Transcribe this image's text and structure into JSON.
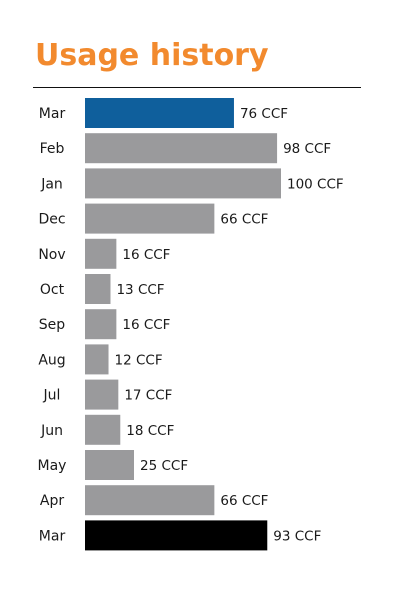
{
  "chart_data": {
    "type": "bar",
    "orientation": "horizontal",
    "title": "Usage history",
    "unit": "CCF",
    "categories": [
      "Mar",
      "Feb",
      "Jan",
      "Dec",
      "Nov",
      "Oct",
      "Sep",
      "Aug",
      "Jul",
      "Jun",
      "May",
      "Apr",
      "Mar"
    ],
    "values": [
      76,
      98,
      100,
      66,
      16,
      13,
      16,
      12,
      17,
      18,
      25,
      66,
      93
    ],
    "value_labels": [
      "76 CCF",
      "98 CCF",
      "100 CCF",
      "66 CCF",
      "16 CCF",
      "13 CCF",
      "16 CCF",
      "12 CCF",
      "17 CCF",
      "18 CCF",
      "25 CCF",
      "66 CCF",
      "93 CCF"
    ],
    "bar_colors": [
      "#0f5f9c",
      "#9a9a9c",
      "#9a9a9c",
      "#9a9a9c",
      "#9a9a9c",
      "#9a9a9c",
      "#9a9a9c",
      "#9a9a9c",
      "#9a9a9c",
      "#9a9a9c",
      "#9a9a9c",
      "#9a9a9c",
      "#000000"
    ],
    "xlim": [
      0,
      100
    ],
    "grid": false,
    "legend": "none"
  },
  "colors": {
    "title": "#f28a2e",
    "current_month": "#0f5f9c",
    "history": "#9a9a9c",
    "prior_year_month": "#000000"
  }
}
